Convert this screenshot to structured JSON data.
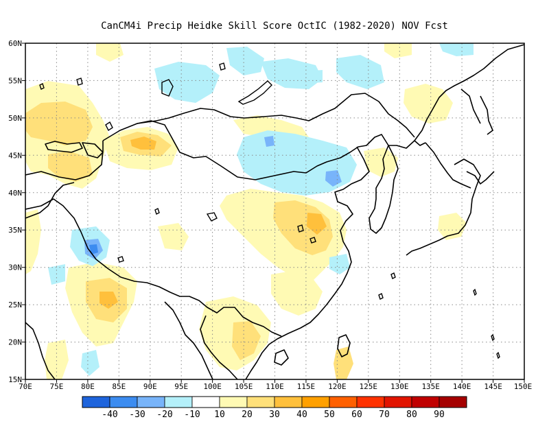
{
  "title": "CanCM4i Precip Heidke Skill Score OctIC (1982-2020) NOV Fcst",
  "map": {
    "lon_range": [
      70,
      150
    ],
    "lat_range": [
      15,
      60
    ],
    "x_ticks": [
      "70E",
      "75E",
      "80E",
      "85E",
      "90E",
      "95E",
      "100E",
      "105E",
      "110E",
      "115E",
      "120E",
      "125E",
      "130E",
      "135E",
      "140E",
      "145E",
      "150E"
    ],
    "y_ticks": [
      "15N",
      "20N",
      "25N",
      "30N",
      "35N",
      "40N",
      "45N",
      "50N",
      "55N",
      "60N"
    ],
    "grid": "dotted"
  },
  "colorbar": {
    "colors": [
      "#1e64dc",
      "#3c8cf0",
      "#78b4fa",
      "#b4f0fa",
      "#ffffff",
      "#fffab4",
      "#ffe07a",
      "#ffc03c",
      "#ffa000",
      "#ff6000",
      "#ff3200",
      "#e11400",
      "#c00000",
      "#a50000"
    ],
    "labels": [
      "-40",
      "-30",
      "-20",
      "-10",
      "10",
      "20",
      "30",
      "40",
      "50",
      "60",
      "70",
      "80",
      "90"
    ]
  },
  "colors": {
    "skill_negative_light": "#b4f0fa",
    "skill_negative_mid": "#78b4fa",
    "skill_negative_strong": "#3c8cf0",
    "skill_positive_light": "#fffab4",
    "skill_positive_mid": "#ffe07a",
    "skill_positive_strong": "#ffc03c"
  }
}
